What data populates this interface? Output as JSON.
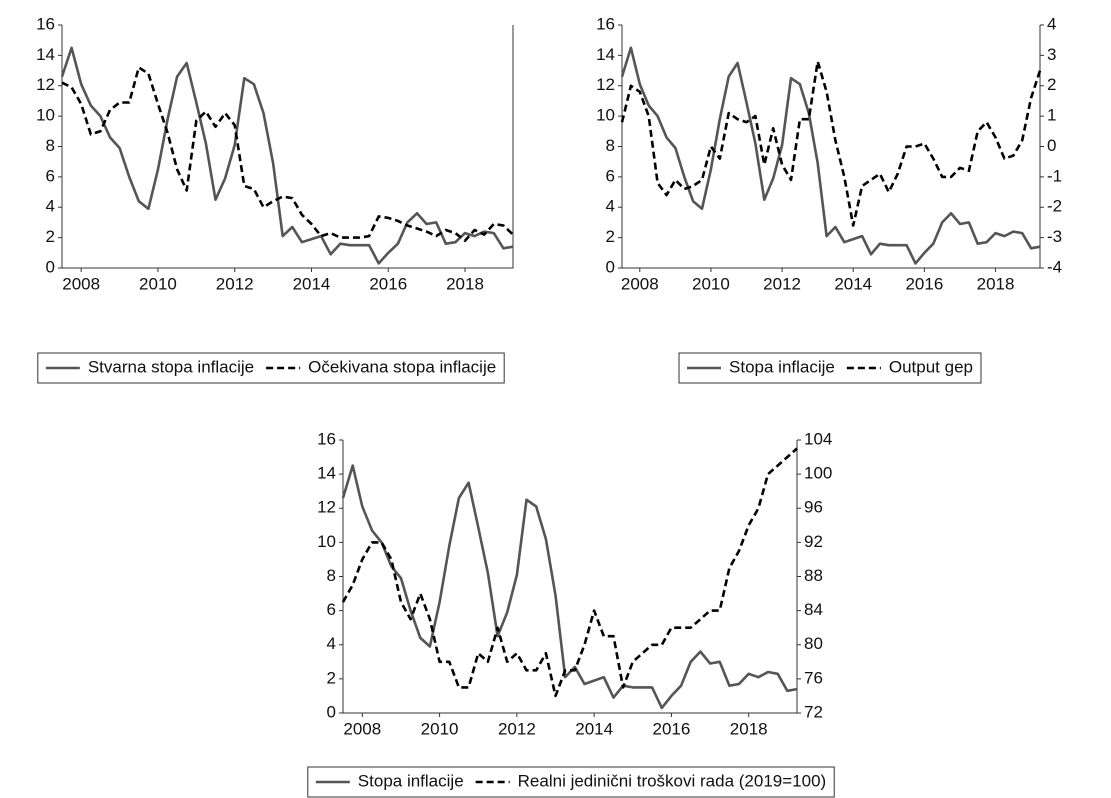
{
  "chart_data": [
    {
      "type": "line",
      "categories": [
        null,
        null,
        "2008",
        null,
        null,
        null,
        null,
        null,
        null,
        null,
        "2010",
        null,
        null,
        null,
        null,
        null,
        null,
        null,
        "2012",
        null,
        null,
        null,
        null,
        null,
        null,
        null,
        "2014",
        null,
        null,
        null,
        null,
        null,
        null,
        null,
        "2016",
        null,
        null,
        null,
        null,
        null,
        null,
        null,
        "2018",
        null,
        null,
        null,
        null,
        null
      ],
      "ylim": [
        0,
        16
      ],
      "yticks": [
        0,
        2,
        4,
        6,
        8,
        10,
        12,
        14,
        16
      ],
      "series": [
        {
          "name": "Stvarna stopa inflacije",
          "color": "#555555",
          "style": "solid",
          "values": [
            12.6,
            14.5,
            12.1,
            10.7,
            10.0,
            8.6,
            7.9,
            6.0,
            4.4,
            3.9,
            6.5,
            9.8,
            12.6,
            13.5,
            10.9,
            8.2,
            4.5,
            5.9,
            8.1,
            12.5,
            12.1,
            10.2,
            6.9,
            2.1,
            2.7,
            1.7,
            1.9,
            2.1,
            0.9,
            1.6,
            1.5,
            1.5,
            1.5,
            0.3,
            1.0,
            1.6,
            3.0,
            3.6,
            2.9,
            3.0,
            1.6,
            1.7,
            2.3,
            2.1,
            2.4,
            2.3,
            1.3,
            1.4
          ]
        },
        {
          "name": "Očekivana stopa inflacije",
          "color": "#000000",
          "style": "dashed",
          "values": [
            12.2,
            11.9,
            10.8,
            8.8,
            9.0,
            10.4,
            10.9,
            10.9,
            13.2,
            12.8,
            10.8,
            8.9,
            6.5,
            5.1,
            9.7,
            10.3,
            9.3,
            10.2,
            9.4,
            5.4,
            5.2,
            4.0,
            4.4,
            4.7,
            4.6,
            3.5,
            2.9,
            2.1,
            2.3,
            2.0,
            2.0,
            2.0,
            2.1,
            3.4,
            3.3,
            3.1,
            2.8,
            2.6,
            2.4,
            2.1,
            2.5,
            2.3,
            1.8,
            2.5,
            2.2,
            2.9,
            2.8,
            2.2
          ]
        }
      ]
    },
    {
      "type": "line",
      "categories": [
        null,
        null,
        "2008",
        null,
        null,
        null,
        null,
        null,
        null,
        null,
        "2010",
        null,
        null,
        null,
        null,
        null,
        null,
        null,
        "2012",
        null,
        null,
        null,
        null,
        null,
        null,
        null,
        "2014",
        null,
        null,
        null,
        null,
        null,
        null,
        null,
        "2016",
        null,
        null,
        null,
        null,
        null,
        null,
        null,
        "2018",
        null,
        null,
        null,
        null,
        null
      ],
      "ylim": [
        0,
        16
      ],
      "yticks": [
        0,
        2,
        4,
        6,
        8,
        10,
        12,
        14,
        16
      ],
      "y2lim": [
        -4,
        4
      ],
      "y2ticks": [
        -4,
        -3,
        -2,
        -1,
        0,
        1,
        2,
        3,
        4
      ],
      "series": [
        {
          "name": "Stopa inflacije",
          "color": "#555555",
          "style": "solid",
          "values": [
            12.6,
            14.5,
            12.1,
            10.7,
            10.0,
            8.6,
            7.9,
            6.0,
            4.4,
            3.9,
            6.5,
            9.8,
            12.6,
            13.5,
            10.9,
            8.2,
            4.5,
            5.9,
            8.1,
            12.5,
            12.1,
            10.2,
            6.9,
            2.1,
            2.7,
            1.7,
            1.9,
            2.1,
            0.9,
            1.6,
            1.5,
            1.5,
            1.5,
            0.3,
            1.0,
            1.6,
            3.0,
            3.6,
            2.9,
            3.0,
            1.6,
            1.7,
            2.3,
            2.1,
            2.4,
            2.3,
            1.3,
            1.4
          ]
        },
        {
          "name": "Output gep",
          "color": "#000000",
          "style": "dashed",
          "axis": "y2",
          "values": [
            0.8,
            2.0,
            1.8,
            1.0,
            -1.2,
            -1.6,
            -1.1,
            -1.4,
            -1.3,
            -1.1,
            0.0,
            -0.4,
            1.1,
            0.9,
            0.8,
            1.0,
            -0.6,
            0.6,
            -0.6,
            -1.1,
            0.9,
            0.9,
            2.8,
            1.8,
            0.2,
            -1.0,
            -2.6,
            -1.3,
            -1.1,
            -0.9,
            -1.5,
            -0.9,
            0.0,
            0.0,
            0.1,
            -0.4,
            -1.0,
            -1.0,
            -0.7,
            -0.8,
            0.5,
            0.8,
            0.3,
            -0.4,
            -0.3,
            0.2,
            1.6,
            2.5
          ]
        }
      ]
    },
    {
      "type": "line",
      "categories": [
        null,
        null,
        "2008",
        null,
        null,
        null,
        null,
        null,
        null,
        null,
        "2010",
        null,
        null,
        null,
        null,
        null,
        null,
        null,
        "2012",
        null,
        null,
        null,
        null,
        null,
        null,
        null,
        "2014",
        null,
        null,
        null,
        null,
        null,
        null,
        null,
        "2016",
        null,
        null,
        null,
        null,
        null,
        null,
        null,
        "2018",
        null,
        null,
        null,
        null,
        null
      ],
      "ylim": [
        0,
        16
      ],
      "yticks": [
        0,
        2,
        4,
        6,
        8,
        10,
        12,
        14,
        16
      ],
      "y2lim": [
        72,
        104
      ],
      "y2ticks": [
        72,
        76,
        80,
        84,
        88,
        92,
        96,
        100,
        104
      ],
      "series": [
        {
          "name": "Stopa inflacije",
          "color": "#555555",
          "style": "solid",
          "values": [
            12.6,
            14.5,
            12.1,
            10.7,
            10.0,
            8.6,
            7.9,
            6.0,
            4.4,
            3.9,
            6.5,
            9.8,
            12.6,
            13.5,
            10.9,
            8.2,
            4.5,
            5.9,
            8.1,
            12.5,
            12.1,
            10.2,
            6.9,
            2.1,
            2.7,
            1.7,
            1.9,
            2.1,
            0.9,
            1.6,
            1.5,
            1.5,
            1.5,
            0.3,
            1.0,
            1.6,
            3.0,
            3.6,
            2.9,
            3.0,
            1.6,
            1.7,
            2.3,
            2.1,
            2.4,
            2.3,
            1.3,
            1.4
          ]
        },
        {
          "name": "Realni jedinični troškovi rada (2019=100)",
          "color": "#000000",
          "style": "dashed",
          "axis": "y2",
          "values": [
            85,
            87,
            90,
            92,
            92,
            90,
            85,
            83,
            86,
            83,
            78,
            78,
            75,
            75,
            79,
            78,
            82,
            78,
            79,
            77,
            77,
            79,
            74,
            77,
            77,
            80,
            84,
            81,
            81,
            75,
            78,
            79,
            80,
            80,
            82,
            82,
            82,
            83,
            84,
            84,
            89,
            91,
            94,
            96,
            100,
            101,
            102,
            103
          ]
        }
      ]
    }
  ]
}
